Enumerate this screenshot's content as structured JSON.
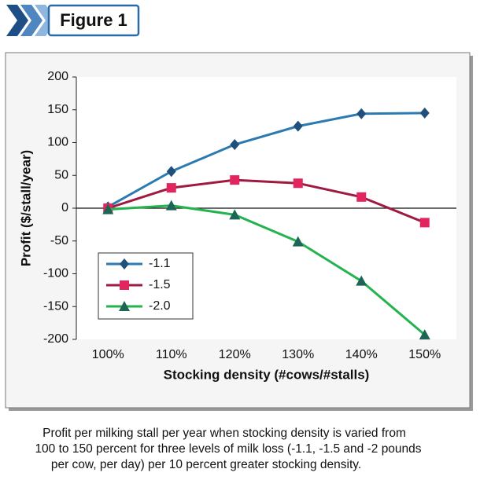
{
  "figure_label": "Figure 1",
  "chart_data": {
    "type": "line",
    "y_label": "Profit ($/stall/year)",
    "x_label": "Stocking density (#cows/#stalls)",
    "categories": [
      "100%",
      "110%",
      "120%",
      "130%",
      "140%",
      "150%"
    ],
    "series": [
      {
        "name": "-1.1",
        "color": "#2b7bb0",
        "marker_color": "#1f4f7a",
        "marker": "diamond",
        "values": [
          2,
          56,
          97,
          125,
          144,
          145
        ]
      },
      {
        "name": "-1.5",
        "color": "#9e1a40",
        "marker_color": "#e2245f",
        "marker": "square",
        "values": [
          0,
          31,
          43,
          38,
          17,
          -22
        ]
      },
      {
        "name": "-2.0",
        "color": "#25b34f",
        "marker_color": "#1d6656",
        "marker": "triangle",
        "values": [
          -2,
          4,
          -10,
          -51,
          -111,
          -193
        ]
      }
    ],
    "ylim": [
      -200,
      200
    ],
    "yticks": [
      -200,
      -150,
      -100,
      -50,
      0,
      50,
      100,
      150,
      200
    ],
    "grid": false,
    "legend": "lower left"
  },
  "caption": [
    "Profit per milking stall per year when stocking density is varied from",
    "100 to 150 percent for three levels of milk loss (-1.1, -1.5 and -2 pounds",
    "per cow, per day) per 10 percent greater stocking density."
  ]
}
